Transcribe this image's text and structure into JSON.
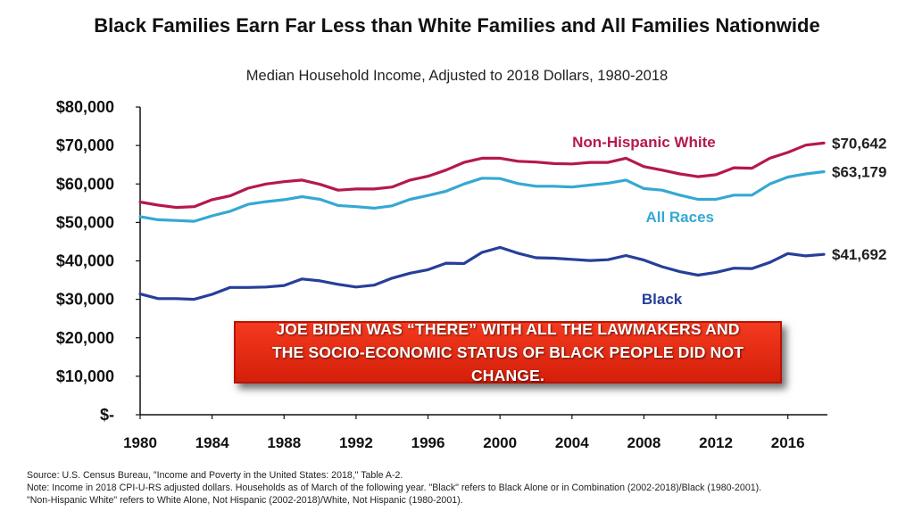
{
  "header": {
    "title": "Black Families Earn Far Less than White Families and All Families Nationwide",
    "subtitle": "Median Household Income, Adjusted to 2018 Dollars, 1980-2018"
  },
  "banner": {
    "text": "JOE BIDEN WAS “THERE” WITH ALL THE LAWMAKERS AND THE SOCIO-ECONOMIC STATUS OF BLACK PEOPLE DID NOT CHANGE."
  },
  "footnotes": {
    "source": "Source: U.S. Census Bureau, \"Income and Poverty in the United States: 2018,\" Table A-2.",
    "note1": "Note: Income in 2018 CPI-U-RS adjusted dollars. Households as of March of the following year. \"Black\" refers to Black Alone or in Combination (2002-2018)/Black (1980-2001).",
    "note2": "\"Non-Hispanic White\" refers to White Alone, Not Hispanic (2002-2018)/White, Not Hispanic (1980-2001)."
  },
  "colors": {
    "white": "#b5194a",
    "all": "#35a8d3",
    "black": "#263f99",
    "banner": "#e8290f"
  },
  "chart_data": {
    "type": "line",
    "title": "Black Families Earn Far Less than White Families and All Families Nationwide",
    "subtitle": "Median Household Income, Adjusted to 2018 Dollars, 1980-2018",
    "xlim": [
      1980,
      2018
    ],
    "ylim": [
      0,
      80000
    ],
    "xticks": [
      "1980",
      "1984",
      "1988",
      "1992",
      "1996",
      "2000",
      "2004",
      "2008",
      "2012",
      "2016"
    ],
    "xtick_values": [
      1980,
      1984,
      1988,
      1992,
      1996,
      2000,
      2004,
      2008,
      2012,
      2016
    ],
    "yticks": [
      "$-",
      "$10,000",
      "$20,000",
      "$30,000",
      "$40,000",
      "$50,000",
      "$60,000",
      "$70,000",
      "$80,000"
    ],
    "ytick_values": [
      0,
      10000,
      20000,
      30000,
      40000,
      50000,
      60000,
      70000,
      80000
    ],
    "grid": false,
    "x": [
      1980,
      1981,
      1982,
      1983,
      1984,
      1985,
      1986,
      1987,
      1988,
      1989,
      1990,
      1991,
      1992,
      1993,
      1994,
      1995,
      1996,
      1997,
      1998,
      1999,
      2000,
      2001,
      2002,
      2003,
      2004,
      2005,
      2006,
      2007,
      2008,
      2009,
      2010,
      2011,
      2012,
      2013,
      2014,
      2015,
      2016,
      2017,
      2018
    ],
    "series": [
      {
        "name": "Non-Hispanic White",
        "color_key": "white",
        "end_label": "$70,642",
        "values": [
          55300,
          54500,
          53900,
          54100,
          55900,
          56900,
          58900,
          60000,
          60600,
          61000,
          59900,
          58400,
          58700,
          58700,
          59200,
          61000,
          62000,
          63600,
          65600,
          66700,
          66700,
          65900,
          65700,
          65300,
          65200,
          65600,
          65600,
          66700,
          64500,
          63600,
          62600,
          61900,
          62400,
          64200,
          64100,
          66700,
          68200,
          70100,
          70642
        ]
      },
      {
        "name": "All Races",
        "color_key": "all",
        "end_label": "$63,179",
        "values": [
          51500,
          50700,
          50500,
          50300,
          51700,
          52900,
          54700,
          55400,
          55900,
          56700,
          56000,
          54400,
          54100,
          53700,
          54300,
          56000,
          57000,
          58100,
          60000,
          61500,
          61400,
          60100,
          59400,
          59400,
          59200,
          59700,
          60200,
          61000,
          58800,
          58400,
          57100,
          56000,
          56000,
          57100,
          57100,
          60000,
          61800,
          62600,
          63179
        ]
      },
      {
        "name": "Black",
        "color_key": "black",
        "end_label": "$41,692",
        "values": [
          31400,
          30200,
          30200,
          30000,
          31300,
          33100,
          33100,
          33200,
          33600,
          35300,
          34800,
          33900,
          33200,
          33700,
          35500,
          36800,
          37700,
          39400,
          39300,
          42200,
          43500,
          42000,
          40800,
          40700,
          40400,
          40100,
          40300,
          41400,
          40200,
          38500,
          37200,
          36300,
          37000,
          38100,
          38000,
          39600,
          41900,
          41300,
          41692
        ]
      }
    ]
  }
}
